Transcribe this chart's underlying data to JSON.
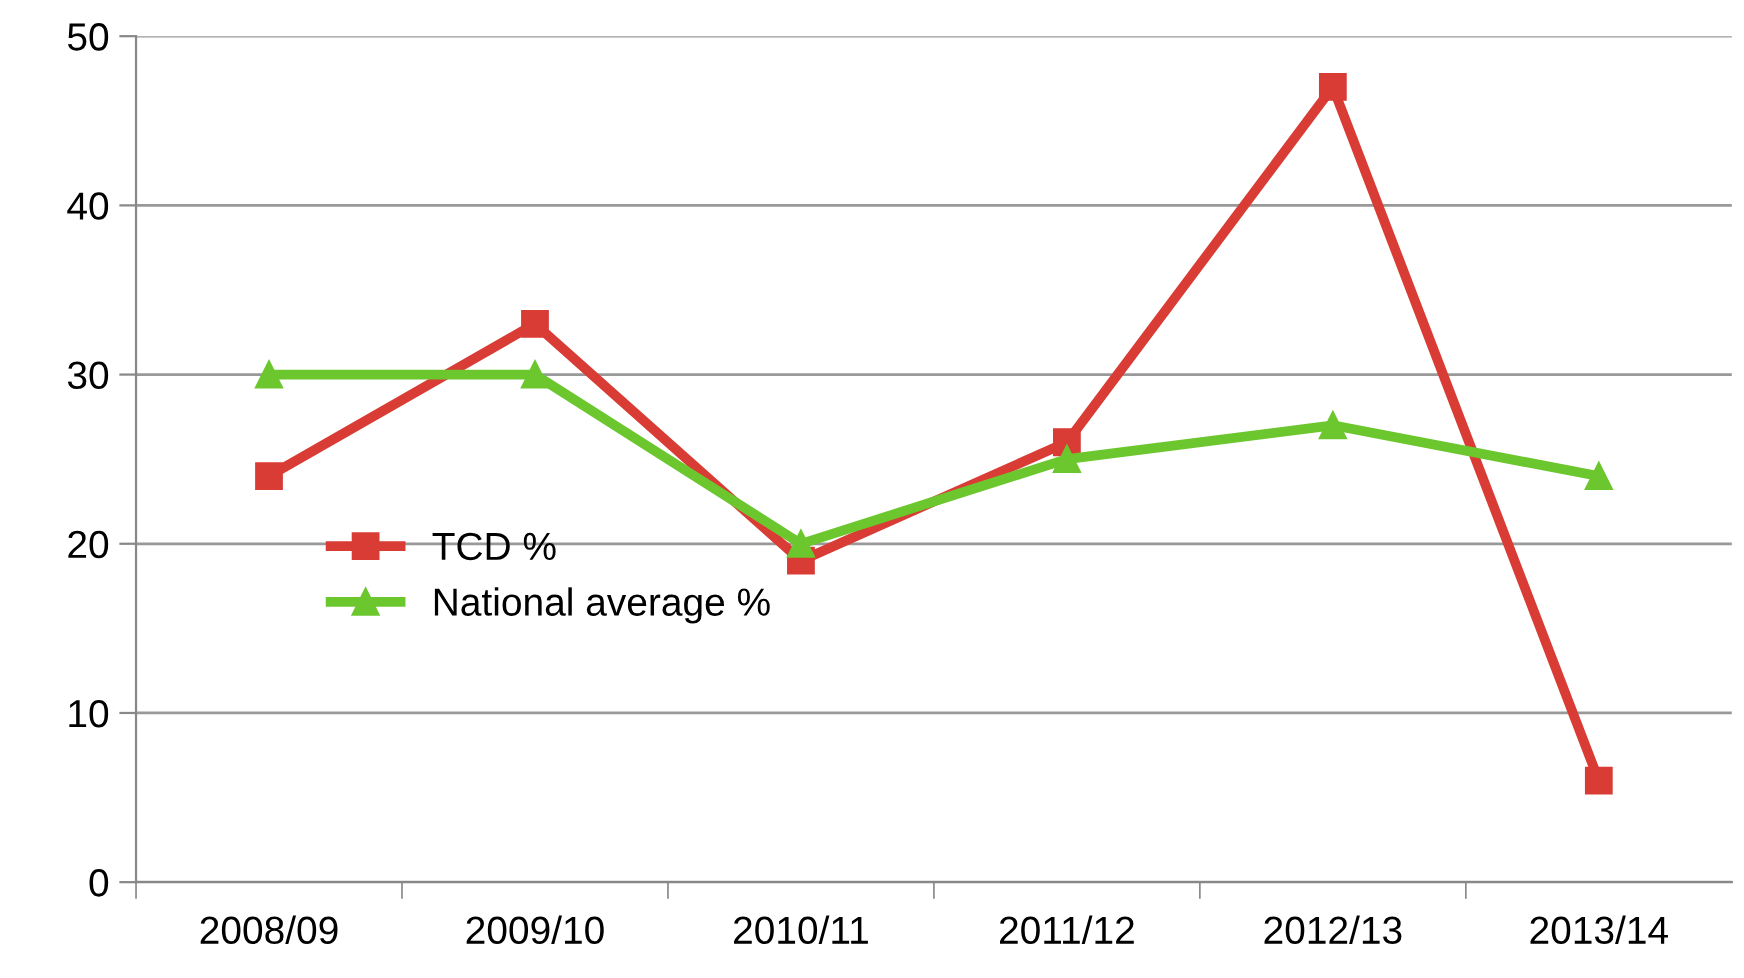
{
  "chart_data": {
    "type": "line",
    "categories": [
      "2008/09",
      "2009/10",
      "2010/11",
      "2011/12",
      "2012/13",
      "2013/14"
    ],
    "series": [
      {
        "name": "TCD %",
        "color": "#d93b35",
        "values": [
          24,
          33,
          19,
          26,
          47,
          6
        ],
        "marker": "square"
      },
      {
        "name": "National average %",
        "color": "#6cc72e",
        "values": [
          30,
          30,
          20,
          25,
          27,
          24
        ],
        "marker": "triangle"
      }
    ],
    "ylim": [
      0,
      50
    ],
    "yticks": [
      0,
      10,
      20,
      30,
      40,
      50
    ],
    "grid": "y",
    "legend": "center left",
    "line_style": "solid"
  }
}
